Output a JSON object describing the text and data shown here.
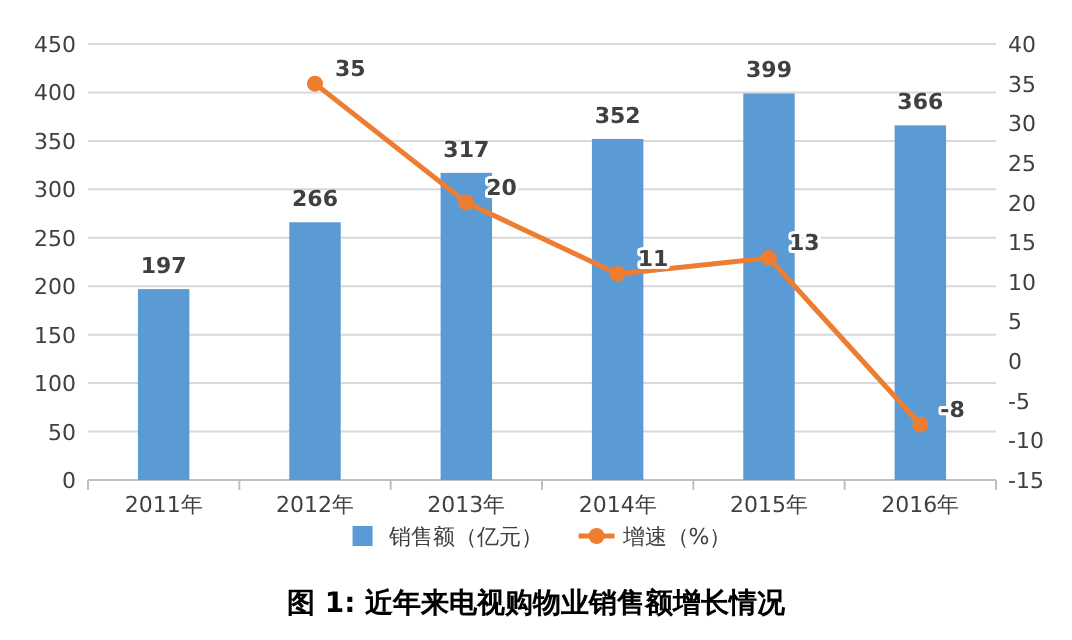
{
  "chart_data": {
    "type": "bar",
    "title": "图 1: 近年来电视购物业销售额增长情况",
    "categories": [
      "2011年",
      "2012年",
      "2013年",
      "2014年",
      "2015年",
      "2016年"
    ],
    "series": [
      {
        "name": "销售额（亿元）",
        "color": "#5b9bd5",
        "values": [
          197,
          266,
          317,
          352,
          399,
          366
        ]
      },
      {
        "name": "增速（%）",
        "type": "line",
        "axis": "y2",
        "color": "#ed7d31",
        "marker": "circle",
        "values": [
          null,
          35,
          20,
          11,
          13,
          -8
        ]
      }
    ],
    "ylim": [
      0,
      450
    ],
    "yticks": [
      0,
      50,
      100,
      150,
      200,
      250,
      300,
      350,
      400,
      450
    ],
    "y2lim": [
      -15,
      40
    ],
    "y2ticks": [
      -15,
      -10,
      -5,
      0,
      5,
      10,
      15,
      20,
      25,
      30,
      35,
      40
    ],
    "grid": "y",
    "legend": "bottom",
    "data_labels": true
  }
}
